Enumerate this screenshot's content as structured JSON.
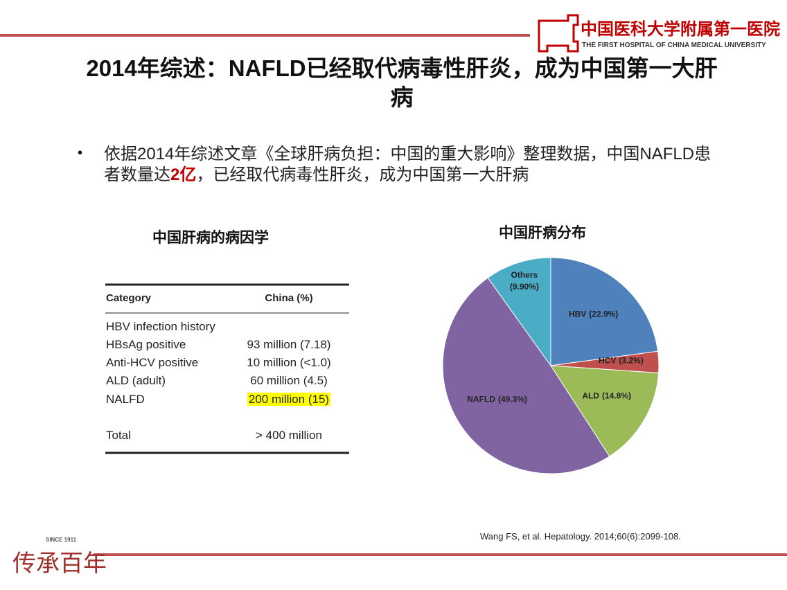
{
  "header": {
    "logo_cn": "中国医科大学附属第一医院",
    "logo_en": "THE FIRST HOSPITAL OF CHINA MEDICAL UNIVERSITY"
  },
  "title": "2014年综述：NAFLD已经取代病毒性肝炎，成为中国第一大肝病",
  "bullet": [
    "依据2014年综述文章《全球肝病负担：中国的重大影响》整理数据，中国NAFLD患者数量达",
    "2亿",
    "，已经取代病毒性肝炎，成为中国第一大肝病"
  ],
  "table": {
    "title": "中国肝病的病因学",
    "header": [
      "Category",
      "China (%)"
    ],
    "rows": [
      [
        "HBV infection history"
      ],
      [
        "HBsAg positive",
        "93 million (7.18)"
      ],
      [
        "Anti-HCV positive",
        "10 million (<1.0)"
      ],
      [
        "ALD (adult)",
        "60 million (4.5)"
      ],
      [
        "NALFD",
        "200 million (15)"
      ],
      [
        "Total",
        "> 400 million"
      ]
    ]
  },
  "chart_data": {
    "type": "pie",
    "title": "中国肝病分布",
    "categories": [
      "HBV",
      "HCV",
      "ALD",
      "NAFLD",
      "Others"
    ],
    "values": [
      22.9,
      3.2,
      14.8,
      49.3,
      9.9
    ],
    "value_labels": [
      "(22.9%)",
      "(3.2%)",
      "(14.8%)",
      "(49.3%)",
      "(9.90%)"
    ],
    "colors": [
      "#4f81bd",
      "#c0504d",
      "#9bbb59",
      "#8064a2",
      "#4bacc6"
    ]
  },
  "citation": "Wang FS, et al. Hepatology. 2014;60(6):2099-108.",
  "footer": {
    "motto": "传承百年",
    "since": "SINCE 1911"
  }
}
